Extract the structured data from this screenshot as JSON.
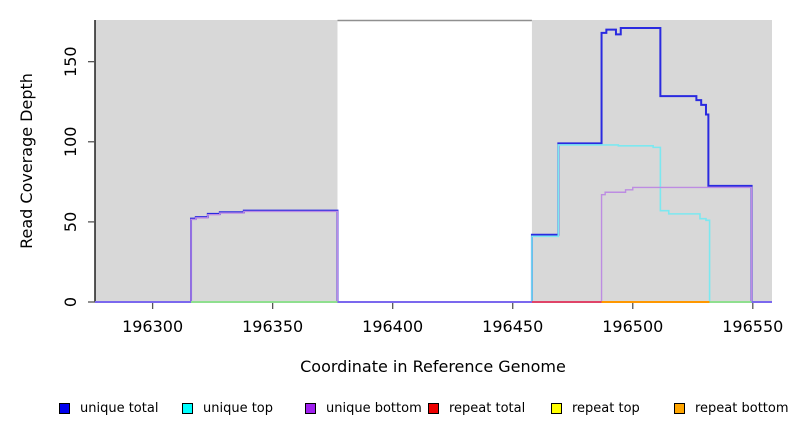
{
  "chart_data": {
    "type": "line",
    "title": "",
    "xlabel": "Coordinate in Reference Genome",
    "ylabel": "Read Coverage Depth",
    "xlim": [
      196276,
      196558
    ],
    "ylim": [
      0,
      176
    ],
    "x_ticks": [
      196300,
      196350,
      196400,
      196450,
      196500,
      196550
    ],
    "y_ticks": [
      0,
      50,
      100,
      150
    ],
    "grid": false,
    "legend_position": "bottom",
    "background_shading": [
      {
        "x0": 196276,
        "x1": 196377,
        "color": "#d8d8d8"
      },
      {
        "x0": 196458,
        "x1": 196558,
        "color": "#d8d8d8"
      }
    ],
    "gap_top_border": {
      "x0": 196377,
      "x1": 196458,
      "color": "#909090"
    },
    "series": [
      {
        "name": "unique total",
        "line_color": "#2a2ae0",
        "line_width": 2,
        "step_points": [
          [
            196276,
            0
          ],
          [
            196316,
            52
          ],
          [
            196318,
            53
          ],
          [
            196323,
            55
          ],
          [
            196328,
            56
          ],
          [
            196338,
            57
          ],
          [
            196377,
            0
          ],
          [
            196458,
            42
          ],
          [
            196469,
            99
          ],
          [
            196487,
            168
          ],
          [
            196489,
            170
          ],
          [
            196493,
            167
          ],
          [
            196495,
            171
          ],
          [
            196511.5,
            128.5
          ],
          [
            196526.5,
            126
          ],
          [
            196528.5,
            123
          ],
          [
            196530.5,
            117
          ],
          [
            196531.5,
            72.5
          ],
          [
            196549.5,
            0
          ],
          [
            196558,
            0
          ]
        ]
      },
      {
        "name": "unique top",
        "line_color": "#7ce8f0",
        "line_width": 1.6,
        "step_points": [
          [
            196276,
            0
          ],
          [
            196458,
            41
          ],
          [
            196469,
            98
          ],
          [
            196494,
            97.5
          ],
          [
            196508.5,
            96.5
          ],
          [
            196511.5,
            57
          ],
          [
            196515,
            55
          ],
          [
            196528,
            52
          ],
          [
            196530.5,
            51
          ],
          [
            196532,
            0
          ],
          [
            196558,
            0
          ]
        ]
      },
      {
        "name": "unique bottom",
        "line_color": "#bd8ce2",
        "line_width": 1.4,
        "step_points": [
          [
            196276,
            0
          ],
          [
            196316,
            51.5
          ],
          [
            196318,
            52.5
          ],
          [
            196323,
            54.5
          ],
          [
            196328,
            55.5
          ],
          [
            196338,
            56.5
          ],
          [
            196377,
            0
          ],
          [
            196487,
            67
          ],
          [
            196488.5,
            68.5
          ],
          [
            196497,
            70
          ],
          [
            196500,
            71.5
          ],
          [
            196549.5,
            0
          ],
          [
            196558,
            0
          ]
        ]
      },
      {
        "name": "repeat total",
        "line_color": "#e04468",
        "line_width": 1.8,
        "step_points": [
          [
            196276,
            0
          ],
          [
            196558,
            0
          ]
        ],
        "note": "flat at zero"
      },
      {
        "name": "repeat top",
        "line_color": "#ffff00",
        "line_width": 1.8,
        "step_points": [
          [
            196276,
            0
          ],
          [
            196558,
            0
          ]
        ],
        "note": "flat at zero"
      },
      {
        "name": "repeat bottom",
        "line_color": "#ff9800",
        "line_width": 1.8,
        "step_points": [
          [
            196276,
            0
          ],
          [
            196558,
            0
          ]
        ],
        "note": "flat at zero"
      }
    ],
    "baseline_visible_segments": [
      {
        "x0": 196276,
        "x1": 196316,
        "color": "#7b68ee"
      },
      {
        "x0": 196316,
        "x1": 196377,
        "color": "#8fdf8f"
      },
      {
        "x0": 196377,
        "x1": 196458,
        "color": "#7b68ee"
      },
      {
        "x0": 196458,
        "x1": 196487,
        "color": "#e04468"
      },
      {
        "x0": 196487,
        "x1": 196532,
        "color": "#ff9800"
      },
      {
        "x0": 196532,
        "x1": 196549.5,
        "color": "#8fdf8f"
      },
      {
        "x0": 196549.5,
        "x1": 196558,
        "color": "#7b68ee"
      }
    ],
    "legend": [
      {
        "label": "unique total",
        "color": "#0000ee"
      },
      {
        "label": "unique top",
        "color": "#00ffff"
      },
      {
        "label": "unique bottom",
        "color": "#a020f0"
      },
      {
        "label": "repeat total",
        "color": "#ee0000"
      },
      {
        "label": "repeat top",
        "color": "#ffff00"
      },
      {
        "label": "repeat bottom",
        "color": "#ffa500"
      }
    ]
  }
}
